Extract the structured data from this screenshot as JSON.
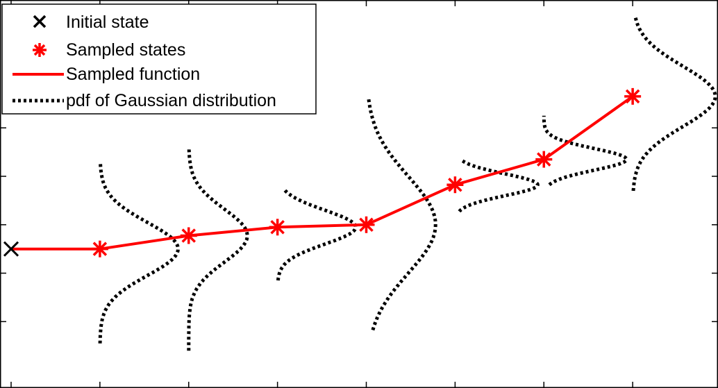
{
  "chart_data": {
    "type": "line",
    "title": "",
    "xlabel": "",
    "ylabel": "",
    "xlim": [
      0,
      8
    ],
    "ylim": [
      -1.2,
      2.4
    ],
    "x_ticks": [
      0,
      1,
      2,
      3,
      4,
      5,
      6,
      7,
      8
    ],
    "y_ticks": [
      -0.6,
      -0.2,
      0.2,
      0.6,
      1.0
    ],
    "grid": false,
    "legend_position": "top-left",
    "initial_state": {
      "x": 0,
      "y": 0
    },
    "series": [
      {
        "name": "Sampled function",
        "x": [
          0,
          1,
          2,
          3,
          4,
          5,
          6,
          7
        ],
        "y": [
          0,
          0,
          0.11,
          0.18,
          0.2,
          0.53,
          0.74,
          1.26
        ]
      }
    ],
    "sampled_states": {
      "x": [
        1,
        2,
        3,
        4,
        5,
        6,
        7
      ],
      "y": [
        0,
        0.11,
        0.18,
        0.2,
        0.53,
        0.74,
        1.26
      ]
    },
    "gaussian_pdfs": [
      {
        "x0": 1,
        "mean": 0.0,
        "sd": 0.22,
        "peak": 0.88,
        "y_range": [
          -0.78,
          0.71
        ]
      },
      {
        "x0": 2,
        "mean": 0.11,
        "sd": 0.22,
        "peak": 0.66,
        "y_range": [
          -0.84,
          0.84
        ]
      },
      {
        "x0": 3,
        "mean": 0.18,
        "sd": 0.14,
        "peak": 0.88,
        "y_range": [
          -0.26,
          0.49
        ]
      },
      {
        "x0": 4,
        "mean": 0.2,
        "sd": 0.4,
        "peak": 0.78,
        "y_range": [
          -0.67,
          1.25
        ]
      },
      {
        "x0": 5,
        "mean": 0.53,
        "sd": 0.09,
        "peak": 0.93,
        "y_range": [
          0.31,
          0.74
        ]
      },
      {
        "x0": 6,
        "mean": 0.74,
        "sd": 0.09,
        "peak": 0.93,
        "y_range": [
          0.53,
          1.1
        ]
      },
      {
        "x0": 7,
        "mean": 1.26,
        "sd": 0.25,
        "peak": 0.93,
        "y_range": [
          0.48,
          1.91
        ]
      }
    ],
    "legend": [
      {
        "label": "Initial state",
        "marker": "x",
        "color": "#000000"
      },
      {
        "label": "Sampled states",
        "marker": "asterisk",
        "color": "#ff0000"
      },
      {
        "label": "Sampled function",
        "marker": "line",
        "color": "#ff0000"
      },
      {
        "label": "pdf of Gaussian distribution",
        "marker": "dotted",
        "color": "#000000"
      }
    ],
    "colors": {
      "function": "#ff0000",
      "pdf": "#000000",
      "axes": "#000000"
    }
  }
}
